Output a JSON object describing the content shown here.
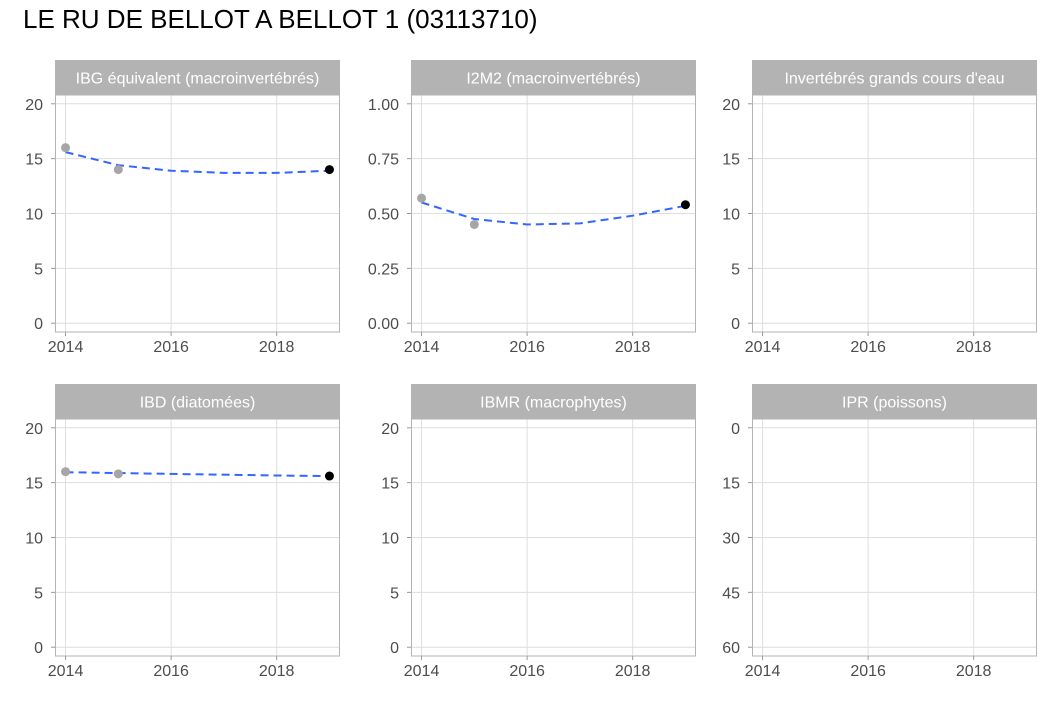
{
  "page": {
    "title": "LE RU DE BELLOT A BELLOT 1 (03113710)"
  },
  "colors": {
    "strip_fill": "#b3b3b3",
    "strip_text": "#ffffff",
    "panel_border": "#b3b3b3",
    "grid": "#dedede",
    "axis_text": "#4d4d4d",
    "point_past": "#a6a6a6",
    "point_latest": "#000000",
    "trend_line": "#3366ff"
  },
  "chart_data": [
    {
      "type": "scatter",
      "title": "IBG équivalent (macroinvertébrés)",
      "xlim": [
        2013.8,
        2019.2
      ],
      "x_ticks": [
        2014,
        2016,
        2018
      ],
      "x_tick_labels": [
        "2014",
        "2016",
        "2018"
      ],
      "ylim": [
        -0.8,
        20.8
      ],
      "y_reversed": false,
      "y_ticks": [
        0,
        5,
        10,
        15,
        20
      ],
      "y_tick_labels": [
        "0",
        "5",
        "10",
        "15",
        "20"
      ],
      "points": [
        {
          "x": 2014,
          "y": 16,
          "latest": false
        },
        {
          "x": 2015,
          "y": 14,
          "latest": false
        },
        {
          "x": 2019,
          "y": 14,
          "latest": true
        }
      ],
      "trend": {
        "style": "dashed",
        "x": [
          2014,
          2015,
          2016,
          2017,
          2018,
          2019
        ],
        "y": [
          15.6,
          14.4,
          13.9,
          13.7,
          13.7,
          13.9
        ]
      }
    },
    {
      "type": "scatter",
      "title": "I2M2 (macroinvertébrés)",
      "xlim": [
        2013.8,
        2019.2
      ],
      "x_ticks": [
        2014,
        2016,
        2018
      ],
      "x_tick_labels": [
        "2014",
        "2016",
        "2018"
      ],
      "ylim": [
        -0.04,
        1.04
      ],
      "y_reversed": false,
      "y_ticks": [
        0,
        0.25,
        0.5,
        0.75,
        1
      ],
      "y_tick_labels": [
        "0.00",
        "0.25",
        "0.50",
        "0.75",
        "1.00"
      ],
      "points": [
        {
          "x": 2014,
          "y": 0.57,
          "latest": false
        },
        {
          "x": 2015,
          "y": 0.45,
          "latest": false
        },
        {
          "x": 2019,
          "y": 0.54,
          "latest": true
        }
      ],
      "trend": {
        "style": "dashed",
        "x": [
          2014,
          2015,
          2016,
          2017,
          2018,
          2019
        ],
        "y": [
          0.55,
          0.475,
          0.45,
          0.455,
          0.49,
          0.535
        ]
      }
    },
    {
      "type": "scatter",
      "title": "Invertébrés grands cours d'eau",
      "xlim": [
        2013.8,
        2019.2
      ],
      "x_ticks": [
        2014,
        2016,
        2018
      ],
      "x_tick_labels": [
        "2014",
        "2016",
        "2018"
      ],
      "ylim": [
        -0.8,
        20.8
      ],
      "y_reversed": false,
      "y_ticks": [
        0,
        5,
        10,
        15,
        20
      ],
      "y_tick_labels": [
        "0",
        "5",
        "10",
        "15",
        "20"
      ],
      "points": [],
      "trend": null
    },
    {
      "type": "scatter",
      "title": "IBD (diatomées)",
      "xlim": [
        2013.8,
        2019.2
      ],
      "x_ticks": [
        2014,
        2016,
        2018
      ],
      "x_tick_labels": [
        "2014",
        "2016",
        "2018"
      ],
      "ylim": [
        -0.8,
        20.8
      ],
      "y_reversed": false,
      "y_ticks": [
        0,
        5,
        10,
        15,
        20
      ],
      "y_tick_labels": [
        "0",
        "5",
        "10",
        "15",
        "20"
      ],
      "points": [
        {
          "x": 2014,
          "y": 16,
          "latest": false
        },
        {
          "x": 2015,
          "y": 15.8,
          "latest": false
        },
        {
          "x": 2019,
          "y": 15.6,
          "latest": true
        }
      ],
      "trend": {
        "style": "dashed",
        "x": [
          2014,
          2016,
          2018,
          2019
        ],
        "y": [
          15.95,
          15.8,
          15.65,
          15.6
        ]
      }
    },
    {
      "type": "scatter",
      "title": "IBMR (macrophytes)",
      "xlim": [
        2013.8,
        2019.2
      ],
      "x_ticks": [
        2014,
        2016,
        2018
      ],
      "x_tick_labels": [
        "2014",
        "2016",
        "2018"
      ],
      "ylim": [
        -0.8,
        20.8
      ],
      "y_reversed": false,
      "y_ticks": [
        0,
        5,
        10,
        15,
        20
      ],
      "y_tick_labels": [
        "0",
        "5",
        "10",
        "15",
        "20"
      ],
      "points": [],
      "trend": null
    },
    {
      "type": "scatter",
      "title": "IPR (poissons)",
      "xlim": [
        2013.8,
        2019.2
      ],
      "x_ticks": [
        2014,
        2016,
        2018
      ],
      "x_tick_labels": [
        "2014",
        "2016",
        "2018"
      ],
      "ylim": [
        -2.4,
        62.4
      ],
      "y_reversed": true,
      "y_ticks": [
        0,
        15,
        30,
        45,
        60
      ],
      "y_tick_labels": [
        "0",
        "15",
        "30",
        "45",
        "60"
      ],
      "points": [],
      "trend": null
    }
  ]
}
